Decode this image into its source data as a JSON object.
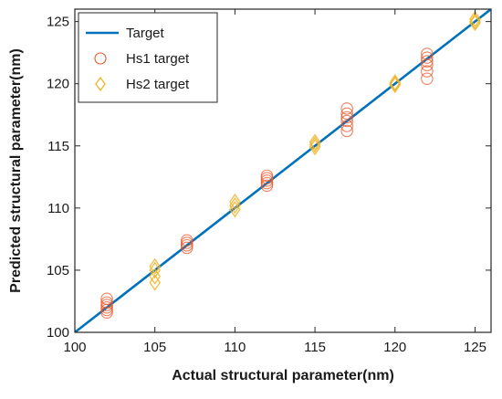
{
  "chart_data": {
    "type": "scatter",
    "xlabel": "Actual structural parameter(nm)",
    "ylabel": "Predicted structural parameter(nm)",
    "xlim": [
      100,
      126
    ],
    "ylim": [
      100,
      126
    ],
    "xticks": [
      "100",
      "105",
      "110",
      "115",
      "120",
      "125"
    ],
    "yticks": [
      "100",
      "105",
      "110",
      "115",
      "120",
      "125"
    ],
    "grid": false,
    "legend_position": "top-left",
    "series": [
      {
        "name": "Target",
        "kind": "line",
        "color": "#0072BD",
        "points": [
          [
            100,
            100
          ],
          [
            126,
            126
          ]
        ]
      },
      {
        "name": "Hs1 target",
        "kind": "circle",
        "color": "#E8562A",
        "points": [
          [
            102,
            101.6
          ],
          [
            102,
            101.8
          ],
          [
            102,
            102.0
          ],
          [
            102,
            102.2
          ],
          [
            102,
            102.4
          ],
          [
            102,
            102.7
          ],
          [
            107,
            106.8
          ],
          [
            107,
            107.0
          ],
          [
            107,
            107.2
          ],
          [
            107,
            107.4
          ],
          [
            112,
            111.8
          ],
          [
            112,
            112.0
          ],
          [
            112,
            112.2
          ],
          [
            112,
            112.4
          ],
          [
            112,
            112.6
          ],
          [
            117,
            116.2
          ],
          [
            117,
            116.6
          ],
          [
            117,
            117.0
          ],
          [
            117,
            117.3
          ],
          [
            117,
            117.6
          ],
          [
            117,
            118.0
          ],
          [
            122,
            120.4
          ],
          [
            122,
            121.0
          ],
          [
            122,
            121.5
          ],
          [
            122,
            121.8
          ],
          [
            122,
            122.1
          ],
          [
            122,
            122.4
          ]
        ]
      },
      {
        "name": "Hs2 target",
        "kind": "diamond",
        "color": "#F0B323",
        "points": [
          [
            105,
            104.0
          ],
          [
            105,
            104.5
          ],
          [
            105,
            105.0
          ],
          [
            105,
            105.3
          ],
          [
            110,
            109.9
          ],
          [
            110,
            110.2
          ],
          [
            110,
            110.5
          ],
          [
            115,
            114.9
          ],
          [
            115,
            115.1
          ],
          [
            115,
            115.3
          ],
          [
            120,
            119.9
          ],
          [
            120,
            120.0
          ],
          [
            120,
            120.1
          ],
          [
            125,
            124.9
          ],
          [
            125,
            125.0
          ],
          [
            125,
            125.2
          ]
        ]
      }
    ]
  }
}
